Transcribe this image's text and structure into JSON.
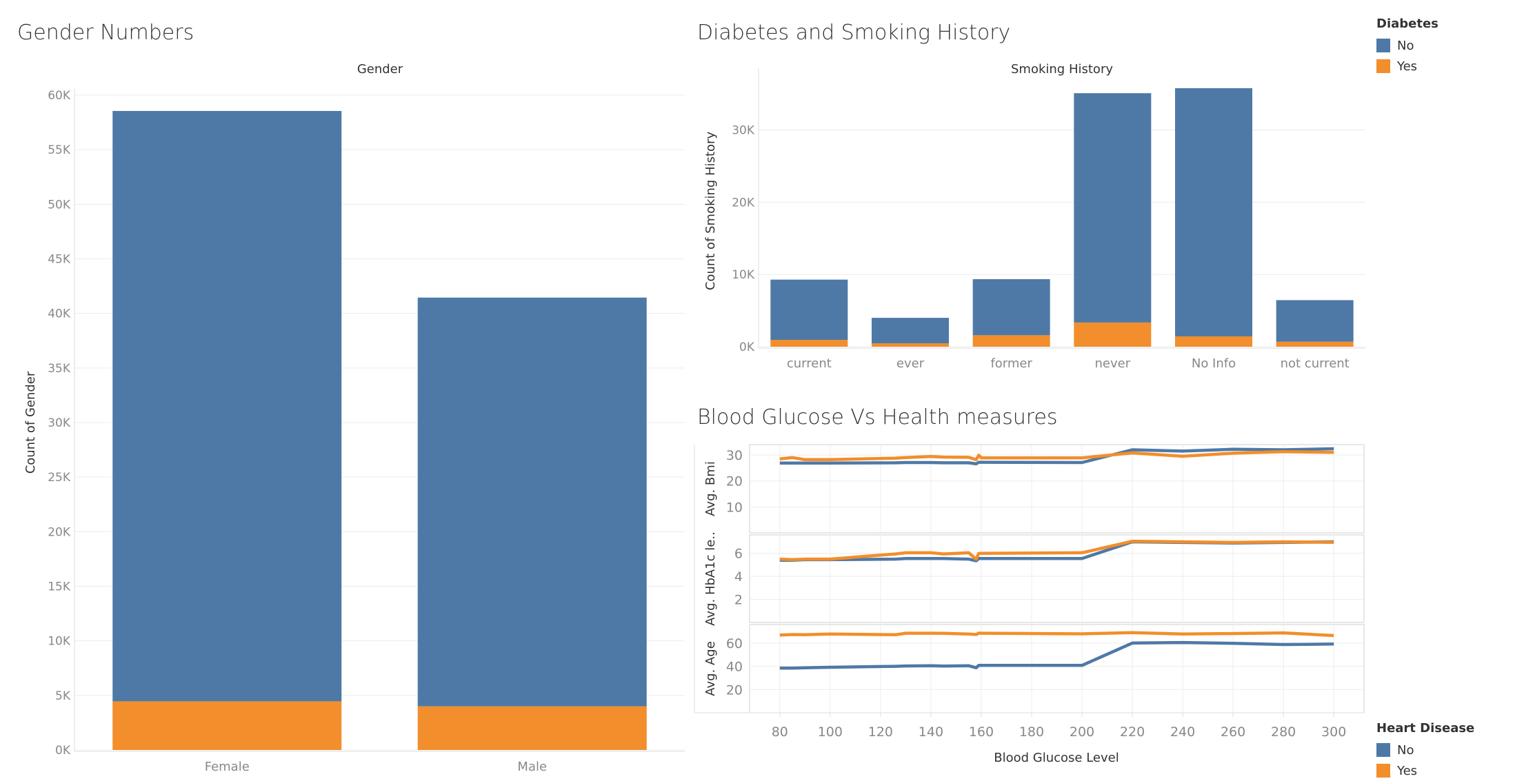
{
  "colors": {
    "blue": "#4e79a7",
    "orange": "#f28e2b",
    "grid": "#ececec",
    "axis": "#dcdcdc",
    "tick": "#888888",
    "text": "#333333"
  },
  "legends": {
    "diabetes": {
      "title": "Diabetes",
      "items": [
        {
          "label": "No",
          "color": "#4e79a7"
        },
        {
          "label": "Yes",
          "color": "#f28e2b"
        }
      ]
    },
    "heart_disease": {
      "title": "Heart Disease",
      "items": [
        {
          "label": "No",
          "color": "#4e79a7"
        },
        {
          "label": "Yes",
          "color": "#f28e2b"
        }
      ]
    }
  },
  "chart_data": [
    {
      "type": "bar",
      "title": "Gender Numbers",
      "header": "Gender",
      "ylabel": "Count of Gender",
      "categories": [
        "Female",
        "Male"
      ],
      "series": [
        {
          "name": "Yes",
          "color": "#f28e2b",
          "values": [
            4460,
            4000
          ]
        },
        {
          "name": "No",
          "color": "#4e79a7",
          "values": [
            54090,
            37450
          ]
        }
      ],
      "stacked": true,
      "ylim": [
        0,
        60000
      ],
      "yticks": [
        0,
        5000,
        10000,
        15000,
        20000,
        25000,
        30000,
        35000,
        40000,
        45000,
        50000,
        55000,
        60000
      ],
      "ytick_labels": [
        "0K",
        "5K",
        "10K",
        "15K",
        "20K",
        "25K",
        "30K",
        "35K",
        "40K",
        "45K",
        "50K",
        "55K",
        "60K"
      ],
      "grid": true
    },
    {
      "type": "bar",
      "title": "Diabetes and Smoking History",
      "header": "Smoking History",
      "ylabel": "Count of Smoking History",
      "categories": [
        "current",
        "ever",
        "former",
        "never",
        "No Info",
        "not current"
      ],
      "series": [
        {
          "name": "Yes",
          "color": "#f28e2b",
          "values": [
            950,
            470,
            1590,
            3350,
            1430,
            690
          ]
        },
        {
          "name": "No",
          "color": "#4e79a7",
          "values": [
            8340,
            3530,
            7760,
            31750,
            34360,
            5760
          ]
        }
      ],
      "stacked": true,
      "ylim": [
        0,
        37600
      ],
      "yticks": [
        0,
        10000,
        20000,
        30000
      ],
      "ytick_labels": [
        "0K",
        "10K",
        "20K",
        "30K"
      ],
      "grid": true
    },
    {
      "type": "line",
      "title": "Blood Glucose Vs Health measures",
      "xlabel": "Blood Glucose Level",
      "x": [
        80,
        85,
        90,
        100,
        126,
        130,
        140,
        145,
        155,
        158,
        159,
        160,
        200,
        220,
        240,
        260,
        280,
        300
      ],
      "xticks": [
        80,
        100,
        120,
        140,
        160,
        180,
        200,
        220,
        240,
        260,
        280,
        300
      ],
      "xlim": [
        68,
        312
      ],
      "grid": true,
      "panels": [
        {
          "ylabel": "Avg. Bmi",
          "ylim": [
            0,
            34
          ],
          "yticks": [
            10,
            20,
            30
          ],
          "series": [
            {
              "name": "No",
              "color": "#4e79a7",
              "values": [
                26.9,
                26.9,
                26.9,
                26.9,
                27.0,
                27.1,
                27.1,
                27.0,
                27.0,
                26.6,
                27.2,
                27.2,
                27.1,
                32.0,
                31.5,
                32.2,
                32.0,
                32.4
              ]
            },
            {
              "name": "Yes",
              "color": "#f28e2b",
              "values": [
                28.5,
                29.0,
                28.2,
                28.2,
                28.8,
                29.0,
                29.4,
                29.2,
                29.1,
                28.2,
                29.9,
                28.9,
                28.9,
                30.8,
                29.5,
                30.7,
                31.3,
                31.0
              ]
            }
          ]
        },
        {
          "ylabel": "Avg. HbA1c le..",
          "ylim": [
            0,
            7.6
          ],
          "yticks": [
            2,
            4,
            6
          ],
          "series": [
            {
              "name": "No",
              "color": "#4e79a7",
              "values": [
                5.4,
                5.4,
                5.45,
                5.45,
                5.5,
                5.55,
                5.55,
                5.55,
                5.5,
                5.35,
                5.55,
                5.55,
                5.55,
                7.0,
                6.95,
                6.9,
                6.95,
                7.0
              ]
            },
            {
              "name": "Yes",
              "color": "#f28e2b",
              "values": [
                5.5,
                5.45,
                5.5,
                5.5,
                5.95,
                6.05,
                6.05,
                5.95,
                6.05,
                5.5,
                6.0,
                6.0,
                6.05,
                7.05,
                7.0,
                6.95,
                7.0,
                6.95
              ]
            }
          ]
        },
        {
          "ylabel": "Avg. Age",
          "ylim": [
            0,
            76
          ],
          "yticks": [
            20,
            40,
            60
          ],
          "series": [
            {
              "name": "No",
              "color": "#4e79a7",
              "values": [
                38.5,
                38.5,
                38.8,
                39.2,
                40.0,
                40.3,
                40.5,
                40.2,
                40.5,
                38.8,
                40.8,
                40.8,
                40.8,
                60.0,
                60.5,
                59.8,
                58.8,
                59.2
              ]
            },
            {
              "name": "Yes",
              "color": "#f28e2b",
              "values": [
                67.0,
                67.4,
                67.3,
                67.8,
                67.2,
                68.5,
                68.5,
                68.4,
                67.8,
                67.4,
                68.6,
                68.5,
                68.0,
                69.0,
                67.8,
                68.2,
                68.8,
                66.5
              ]
            }
          ]
        }
      ]
    }
  ]
}
